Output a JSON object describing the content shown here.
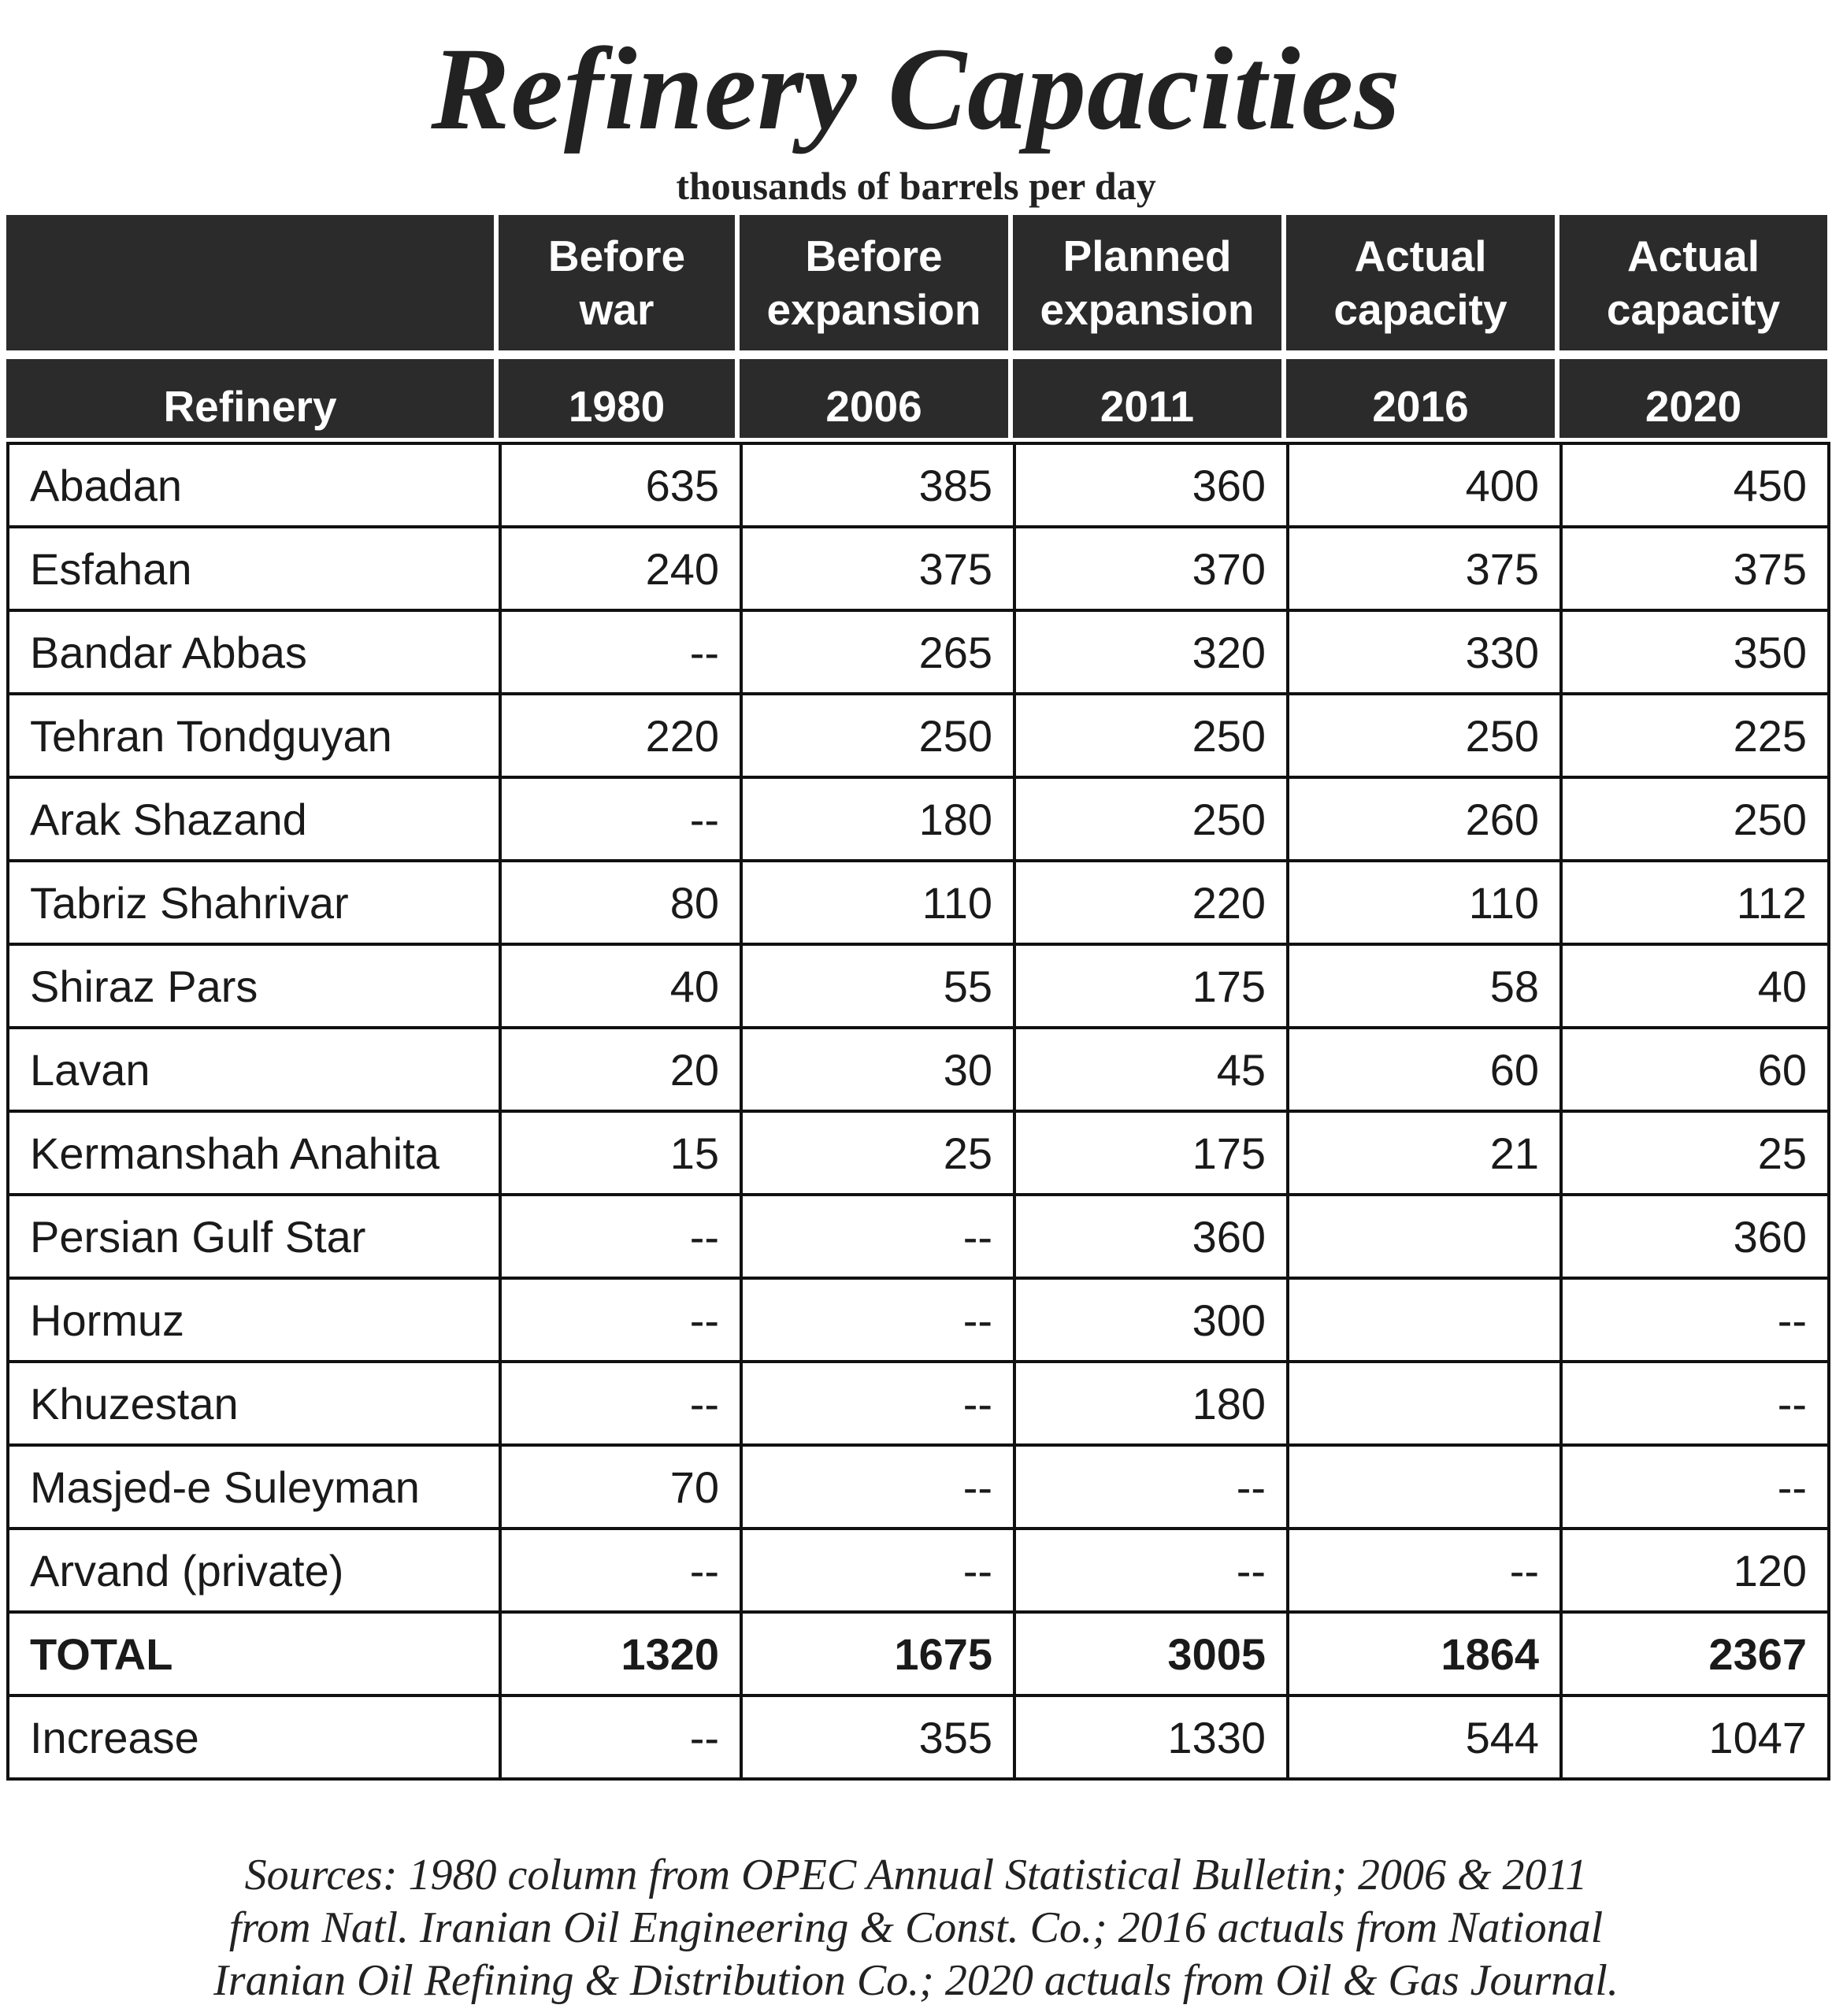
{
  "title": "Refinery Capacities",
  "subtitle": "thousands of barrels per day",
  "header": {
    "top": [
      "",
      "Before war",
      "Before expansion",
      "Planned expansion",
      "Actual capacity",
      "Actual capacity"
    ],
    "top_lines": [
      [
        ""
      ],
      [
        "Before",
        "war"
      ],
      [
        "Before",
        "expansion"
      ],
      [
        "Planned",
        "expansion"
      ],
      [
        "Actual",
        "capacity"
      ],
      [
        "Actual",
        "capacity"
      ]
    ],
    "bottom": [
      "Refinery",
      "1980",
      "2006",
      "2011",
      "2016",
      "2020"
    ]
  },
  "rows": [
    {
      "name": "Abadan",
      "values": [
        "635",
        "385",
        "360",
        "400",
        "450"
      ]
    },
    {
      "name": "Esfahan",
      "values": [
        "240",
        "375",
        "370",
        "375",
        "375"
      ]
    },
    {
      "name": "Bandar Abbas",
      "values": [
        "--",
        "265",
        "320",
        "330",
        "350"
      ]
    },
    {
      "name": "Tehran Tondguyan",
      "values": [
        "220",
        "250",
        "250",
        "250",
        "225"
      ]
    },
    {
      "name": "Arak Shazand",
      "values": [
        "--",
        "180",
        "250",
        "260",
        "250"
      ]
    },
    {
      "name": "Tabriz Shahrivar",
      "values": [
        "80",
        "110",
        "220",
        "110",
        "112"
      ]
    },
    {
      "name": "Shiraz Pars",
      "values": [
        "40",
        "55",
        "175",
        "58",
        "40"
      ]
    },
    {
      "name": "Lavan",
      "values": [
        "20",
        "30",
        "45",
        "60",
        "60"
      ]
    },
    {
      "name": "Kermanshah Anahita",
      "values": [
        "15",
        "25",
        "175",
        "21",
        "25"
      ]
    },
    {
      "name": "Persian Gulf Star",
      "values": [
        "--",
        "--",
        "360",
        "",
        "360"
      ]
    },
    {
      "name": "Hormuz",
      "values": [
        "--",
        "--",
        "300",
        "",
        "--"
      ]
    },
    {
      "name": "Khuzestan",
      "values": [
        "--",
        "--",
        "180",
        "",
        "--"
      ]
    },
    {
      "name": "Masjed-e Suleyman",
      "values": [
        "70",
        "--",
        "--",
        "",
        "--"
      ]
    },
    {
      "name": "Arvand (private)",
      "values": [
        "--",
        "--",
        "--",
        "--",
        "120"
      ]
    },
    {
      "name": "TOTAL",
      "values": [
        "1320",
        "1675",
        "3005",
        "1864",
        "2367"
      ],
      "bold": true
    },
    {
      "name": "Increase",
      "values": [
        "--",
        "355",
        "1330",
        "544",
        "1047"
      ]
    }
  ],
  "sources": [
    "Sources: 1980 column from OPEC Annual Statistical Bulletin; 2006 & 2011",
    "from Natl. Iranian Oil Engineering & Const. Co.; 2016 actuals from National",
    "Iranian Oil Refining & Distribution Co.; 2020 actuals from Oil & Gas Journal."
  ]
}
